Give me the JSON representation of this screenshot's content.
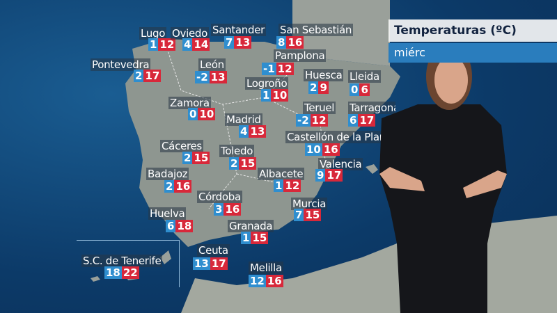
{
  "header": {
    "title": "Temperaturas (ºC)",
    "subtitle": "miérc"
  },
  "colors": {
    "min": "#2f8ecf",
    "max": "#d8283a",
    "sea": "#0c3a68",
    "land": "#8d9590"
  },
  "cities": [
    {
      "name": "Lugo",
      "min": "1",
      "max": "12"
    },
    {
      "name": "Oviedo",
      "min": "4",
      "max": "14"
    },
    {
      "name": "Santander",
      "min": "7",
      "max": "13"
    },
    {
      "name": "San Sebastián",
      "min": "8",
      "max": "16"
    },
    {
      "name": "Pontevedra",
      "min": "2",
      "max": "17"
    },
    {
      "name": "León",
      "min": "-2",
      "max": "13"
    },
    {
      "name": "Pamplona",
      "min": "-1",
      "max": "12"
    },
    {
      "name": "Huesca",
      "min": "2",
      "max": "9"
    },
    {
      "name": "Lleida",
      "min": "0",
      "max": "6"
    },
    {
      "name": "Logroño",
      "min": "1",
      "max": "10"
    },
    {
      "name": "Zamora",
      "min": "0",
      "max": "10"
    },
    {
      "name": "Teruel",
      "min": "-2",
      "max": "12"
    },
    {
      "name": "Tarragona",
      "min": "6",
      "max": "17"
    },
    {
      "name": "Madrid",
      "min": "4",
      "max": "13"
    },
    {
      "name": "Castellón de la Plana",
      "min": "10",
      "max": "16"
    },
    {
      "name": "Cáceres",
      "min": "2",
      "max": "15"
    },
    {
      "name": "Toledo",
      "min": "2",
      "max": "15"
    },
    {
      "name": "Valencia",
      "min": "9",
      "max": "17"
    },
    {
      "name": "Badajoz",
      "min": "2",
      "max": "16"
    },
    {
      "name": "Albacete",
      "min": "1",
      "max": "12"
    },
    {
      "name": "Córdoba",
      "min": "3",
      "max": "16"
    },
    {
      "name": "Huelva",
      "min": "6",
      "max": "18"
    },
    {
      "name": "Murcia",
      "min": "7",
      "max": "15"
    },
    {
      "name": "Granada",
      "min": "1",
      "max": "15"
    },
    {
      "name": "Ceuta",
      "min": "13",
      "max": "17"
    },
    {
      "name": "S.C. de Tenerife",
      "min": "18",
      "max": "22"
    },
    {
      "name": "Melilla",
      "min": "12",
      "max": "16"
    }
  ]
}
